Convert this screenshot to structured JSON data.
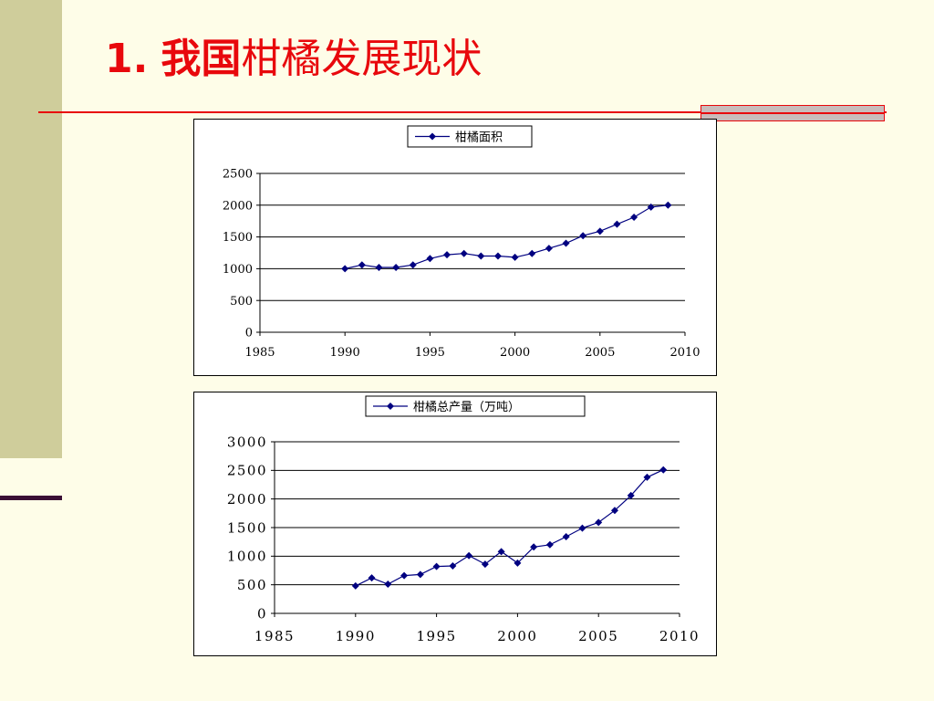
{
  "slide": {
    "title_number": "1.",
    "title_bold": "我国",
    "title_rest": "柑橘发展现状"
  },
  "colors": {
    "title": "#e8080c",
    "series": "#000080",
    "sidebar": "#cfcd9b",
    "background": "#fefde8"
  },
  "chart_data": [
    {
      "type": "line",
      "legend_position": "top",
      "grid": true,
      "series": [
        {
          "name": "柑橘面积",
          "x": [
            1990,
            1991,
            1992,
            1993,
            1994,
            1995,
            1996,
            1997,
            1998,
            1999,
            2000,
            2001,
            2002,
            2003,
            2004,
            2005,
            2006,
            2007,
            2008,
            2009
          ],
          "values": [
            1000,
            1060,
            1020,
            1020,
            1060,
            1160,
            1220,
            1240,
            1200,
            1200,
            1180,
            1240,
            1320,
            1400,
            1520,
            1590,
            1700,
            1810,
            1970,
            2000
          ]
        }
      ],
      "xlim": [
        1985,
        2010
      ],
      "ylim": [
        0,
        2500
      ],
      "xticks": [
        "1985",
        "1990",
        "1995",
        "2000",
        "2005",
        "2010"
      ],
      "yticks": [
        "0",
        "500",
        "1000",
        "1500",
        "2000",
        "2500"
      ]
    },
    {
      "type": "line",
      "legend_position": "top",
      "grid": true,
      "series": [
        {
          "name": "柑橘总产量（万吨）",
          "x": [
            1990,
            1991,
            1992,
            1993,
            1994,
            1995,
            1996,
            1997,
            1998,
            1999,
            2000,
            2001,
            2002,
            2003,
            2004,
            2005,
            2006,
            2007,
            2008,
            2009
          ],
          "values": [
            480,
            620,
            510,
            660,
            680,
            820,
            830,
            1010,
            860,
            1080,
            880,
            1160,
            1200,
            1340,
            1490,
            1590,
            1800,
            2060,
            2380,
            2510
          ]
        }
      ],
      "xlim": [
        1985,
        2010
      ],
      "ylim": [
        0,
        3000
      ],
      "xticks": [
        "1985",
        "1990",
        "1995",
        "2000",
        "2005",
        "2010"
      ],
      "yticks": [
        "0",
        "500",
        "1000",
        "1500",
        "2000",
        "2500",
        "3000"
      ]
    }
  ]
}
